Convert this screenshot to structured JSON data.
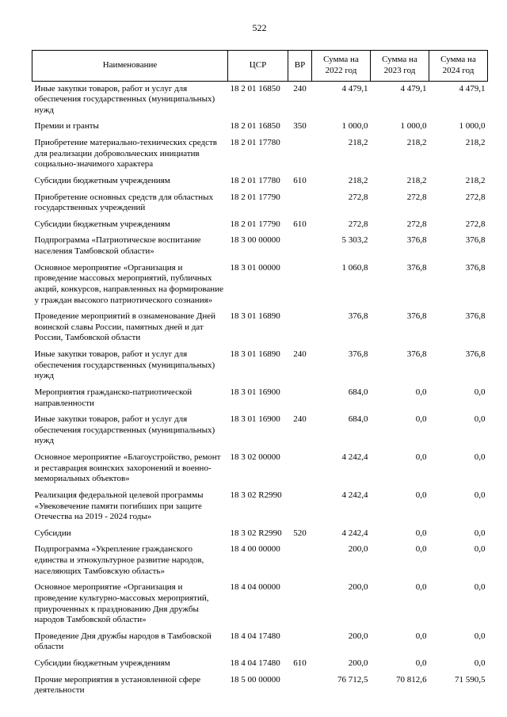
{
  "page": {
    "number": "522"
  },
  "table": {
    "columns": [
      "Наименование",
      "ЦСР",
      "ВР",
      "Сумма на 2022 год",
      "Сумма на 2023 год",
      "Сумма на 2024 год"
    ],
    "rows": [
      {
        "name": "Иные закупки товаров, работ и услуг для обеспечения государственных (муниципальных) нужд",
        "csr": "18 2 01 16850",
        "vr": "240",
        "y2022": "4 479,1",
        "y2023": "4 479,1",
        "y2024": "4 479,1"
      },
      {
        "name": "Премии и гранты",
        "csr": "18 2 01 16850",
        "vr": "350",
        "y2022": "1 000,0",
        "y2023": "1 000,0",
        "y2024": "1 000,0"
      },
      {
        "name": "Приобретение материально-технических средств для реализации добровольческих инициатив социально-значимого характера",
        "csr": "18 2 01 17780",
        "vr": "",
        "y2022": "218,2",
        "y2023": "218,2",
        "y2024": "218,2"
      },
      {
        "name": "Субсидии бюджетным учреждениям",
        "csr": "18 2 01 17780",
        "vr": "610",
        "y2022": "218,2",
        "y2023": "218,2",
        "y2024": "218,2"
      },
      {
        "name": "Приобретение основных средств для областных государственных учреждений",
        "csr": "18 2 01 17790",
        "vr": "",
        "y2022": "272,8",
        "y2023": "272,8",
        "y2024": "272,8"
      },
      {
        "name": "Субсидии бюджетным учреждениям",
        "csr": "18 2 01 17790",
        "vr": "610",
        "y2022": "272,8",
        "y2023": "272,8",
        "y2024": "272,8"
      },
      {
        "name": "Подпрограмма «Патриотическое воспитание населения Тамбовской области»",
        "csr": "18 3 00 00000",
        "vr": "",
        "y2022": "5 303,2",
        "y2023": "376,8",
        "y2024": "376,8"
      },
      {
        "name": "Основное мероприятие «Организация и проведение массовых мероприятий, публичных акций, конкурсов, направленных на формирование у граждан высокого патриотического сознания»",
        "csr": "18 3 01 00000",
        "vr": "",
        "y2022": "1 060,8",
        "y2023": "376,8",
        "y2024": "376,8"
      },
      {
        "name": "Проведение мероприятий в ознаменование Дней воинской славы России, памятных дней и дат России, Тамбовской области",
        "csr": "18 3 01 16890",
        "vr": "",
        "y2022": "376,8",
        "y2023": "376,8",
        "y2024": "376,8"
      },
      {
        "name": "Иные закупки товаров, работ и услуг для обеспечения государственных (муниципальных) нужд",
        "csr": "18 3 01 16890",
        "vr": "240",
        "y2022": "376,8",
        "y2023": "376,8",
        "y2024": "376,8"
      },
      {
        "name": "Мероприятия гражданско-патриотической направленности",
        "csr": "18 3 01 16900",
        "vr": "",
        "y2022": "684,0",
        "y2023": "0,0",
        "y2024": "0,0"
      },
      {
        "name": "Иные закупки товаров, работ и услуг для обеспечения государственных (муниципальных) нужд",
        "csr": "18 3 01 16900",
        "vr": "240",
        "y2022": "684,0",
        "y2023": "0,0",
        "y2024": "0,0"
      },
      {
        "name": "Основное мероприятие «Благоустройство, ремонт и реставрация воинских захоронений и военно-мемориальных объектов»",
        "csr": "18 3 02 00000",
        "vr": "",
        "y2022": "4 242,4",
        "y2023": "0,0",
        "y2024": "0,0"
      },
      {
        "name": "Реализация федеральной целевой программы «Увековечение памяти погибших при защите Отечества на 2019 - 2024 годы»",
        "csr": "18 3 02 R2990",
        "vr": "",
        "y2022": "4 242,4",
        "y2023": "0,0",
        "y2024": "0,0"
      },
      {
        "name": "Субсидии",
        "csr": "18 3 02 R2990",
        "vr": "520",
        "y2022": "4 242,4",
        "y2023": "0,0",
        "y2024": "0,0"
      },
      {
        "name": "Подпрограмма «Укрепление гражданского единства и этнокультурное развитие народов, населяющих Тамбовскую область»",
        "csr": "18 4 00 00000",
        "vr": "",
        "y2022": "200,0",
        "y2023": "0,0",
        "y2024": "0,0"
      },
      {
        "name": "Основное мероприятие «Организация и проведение культурно-массовых мероприятий, приуроченных к празднованию Дня дружбы народов Тамбовской области»",
        "csr": "18 4 04 00000",
        "vr": "",
        "y2022": "200,0",
        "y2023": "0,0",
        "y2024": "0,0"
      },
      {
        "name": "Проведение Дня дружбы народов в Тамбовской области",
        "csr": "18 4 04 17480",
        "vr": "",
        "y2022": "200,0",
        "y2023": "0,0",
        "y2024": "0,0"
      },
      {
        "name": "Субсидии бюджетным учреждениям",
        "csr": "18 4 04 17480",
        "vr": "610",
        "y2022": "200,0",
        "y2023": "0,0",
        "y2024": "0,0"
      },
      {
        "name": "Прочие мероприятия в установленной сфере деятельности",
        "csr": "18 5 00 00000",
        "vr": "",
        "y2022": "76 712,5",
        "y2023": "70 812,6",
        "y2024": "71 590,5"
      }
    ]
  }
}
